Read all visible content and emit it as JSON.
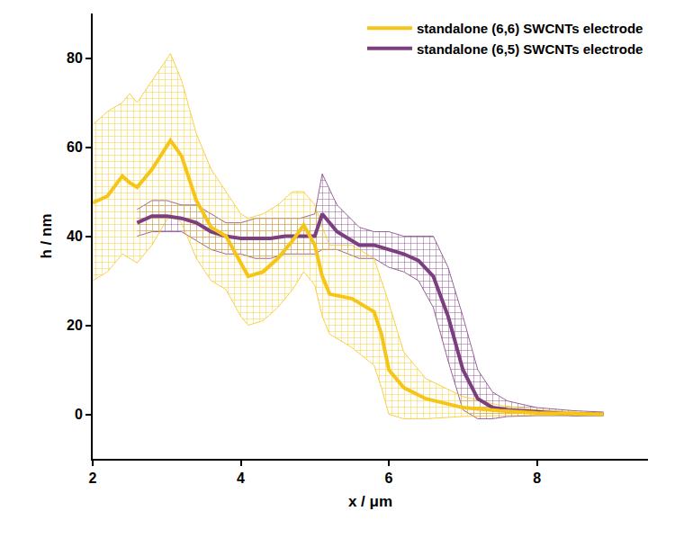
{
  "chart_data": {
    "type": "line",
    "x_label": "x / μm",
    "y_label": "h / nm",
    "xlim": [
      2,
      9.5
    ],
    "xticks": [
      2,
      4,
      6,
      8
    ],
    "ylim": [
      -10,
      90
    ],
    "yticks": [
      0,
      20,
      40,
      60,
      80
    ],
    "grid": false,
    "legend": "top right",
    "series": [
      {
        "name": "standalone (6,5) SWCNTs electrode",
        "color": "#7b3f7f",
        "x": [
          2.6,
          2.8,
          3.0,
          3.2,
          3.4,
          3.6,
          3.8,
          4.0,
          4.2,
          4.4,
          4.6,
          4.8,
          5.0,
          5.1,
          5.3,
          5.6,
          5.8,
          6.0,
          6.2,
          6.4,
          6.6,
          6.8,
          7.0,
          7.2,
          7.4,
          7.6,
          8.0,
          8.5,
          8.9
        ],
        "values": [
          43,
          44.5,
          44.5,
          44,
          43,
          41,
          40,
          39.5,
          39.5,
          39.5,
          40,
          40,
          40,
          45,
          41,
          38,
          38,
          37,
          36,
          34.5,
          31,
          22,
          10,
          3.5,
          1.5,
          1,
          0.5,
          0,
          0
        ],
        "upper": [
          46,
          48,
          48,
          47,
          47,
          45,
          43,
          43,
          44,
          44,
          44,
          44,
          45,
          54,
          47,
          42,
          41,
          41,
          40,
          40,
          40,
          33,
          22,
          10,
          5,
          3,
          1.5,
          0.8,
          0.5
        ],
        "lower": [
          40,
          41,
          41,
          41,
          39,
          37,
          36,
          36,
          35,
          35,
          36,
          36,
          36,
          37,
          37,
          35,
          35,
          33,
          32,
          30,
          24,
          12,
          1,
          -1,
          -1,
          -0.5,
          -0.3,
          -0.3,
          -0.2
        ]
      },
      {
        "name": "standalone (6,6) SWCNTs electrode",
        "color": "#f5c518",
        "x": [
          2.0,
          2.2,
          2.4,
          2.5,
          2.6,
          2.8,
          3.05,
          3.2,
          3.4,
          3.6,
          3.8,
          4.0,
          4.1,
          4.3,
          4.5,
          4.7,
          4.85,
          5.0,
          5.1,
          5.2,
          5.5,
          5.8,
          5.9,
          6.0,
          6.2,
          6.5,
          7.0,
          7.5,
          8.0,
          8.5,
          8.9
        ],
        "values": [
          47.5,
          49,
          53.5,
          52,
          51,
          55,
          61.5,
          58,
          48,
          42,
          40,
          34,
          31,
          32,
          35,
          39,
          42.5,
          38,
          31,
          27,
          26,
          23,
          18,
          10,
          6,
          3.5,
          1.5,
          0.8,
          0.3,
          0.1,
          0
        ],
        "upper": [
          65,
          68,
          70,
          72,
          70,
          75,
          81,
          75,
          63,
          55,
          50,
          45,
          44,
          45,
          47,
          50,
          50,
          47,
          42,
          38,
          38,
          35,
          30,
          25,
          14,
          8,
          4,
          2,
          1,
          0.5,
          0.2
        ],
        "lower": [
          30,
          32,
          36,
          35,
          34,
          38,
          45,
          43,
          35,
          30,
          28,
          22,
          20,
          21,
          24,
          28,
          32,
          29,
          22,
          18,
          15,
          11,
          6,
          0,
          -1,
          -1,
          -0.5,
          -0.3,
          -0.2,
          -0.1,
          -0.1
        ]
      }
    ]
  }
}
